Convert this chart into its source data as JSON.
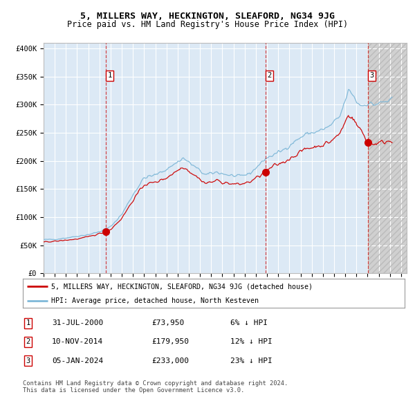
{
  "title": "5, MILLERS WAY, HECKINGTON, SLEAFORD, NG34 9JG",
  "subtitle": "Price paid vs. HM Land Registry's House Price Index (HPI)",
  "xlim_start": 1995.0,
  "xlim_end": 2027.5,
  "ylim_min": 0,
  "ylim_max": 410000,
  "background_color": "#ffffff",
  "plot_bg_color": "#dce9f5",
  "grid_color": "#ffffff",
  "hpi_line_color": "#7fb8d8",
  "price_line_color": "#cc0000",
  "dot_color": "#cc0000",
  "dashed_line_color": "#cc0000",
  "purchase_points": [
    {
      "year": 2000.58,
      "price": 73950,
      "label": "1"
    },
    {
      "year": 2014.86,
      "price": 179950,
      "label": "2"
    },
    {
      "year": 2024.02,
      "price": 233000,
      "label": "3"
    }
  ],
  "legend_line1": "5, MILLERS WAY, HECKINGTON, SLEAFORD, NG34 9JG (detached house)",
  "legend_line2": "HPI: Average price, detached house, North Kesteven",
  "table_data": [
    {
      "num": "1",
      "date": "31-JUL-2000",
      "price": "£73,950",
      "hpi": "6% ↓ HPI"
    },
    {
      "num": "2",
      "date": "10-NOV-2014",
      "price": "£179,950",
      "hpi": "12% ↓ HPI"
    },
    {
      "num": "3",
      "date": "05-JAN-2024",
      "price": "£233,000",
      "hpi": "23% ↓ HPI"
    }
  ],
  "footnote": "Contains HM Land Registry data © Crown copyright and database right 2024.\nThis data is licensed under the Open Government Licence v3.0.",
  "future_start_year": 2024.02,
  "yticks": [
    0,
    50000,
    100000,
    150000,
    200000,
    250000,
    300000,
    350000,
    400000
  ],
  "ytick_labels": [
    "£0",
    "£50K",
    "£100K",
    "£150K",
    "£200K",
    "£250K",
    "£300K",
    "£350K",
    "£400K"
  ]
}
